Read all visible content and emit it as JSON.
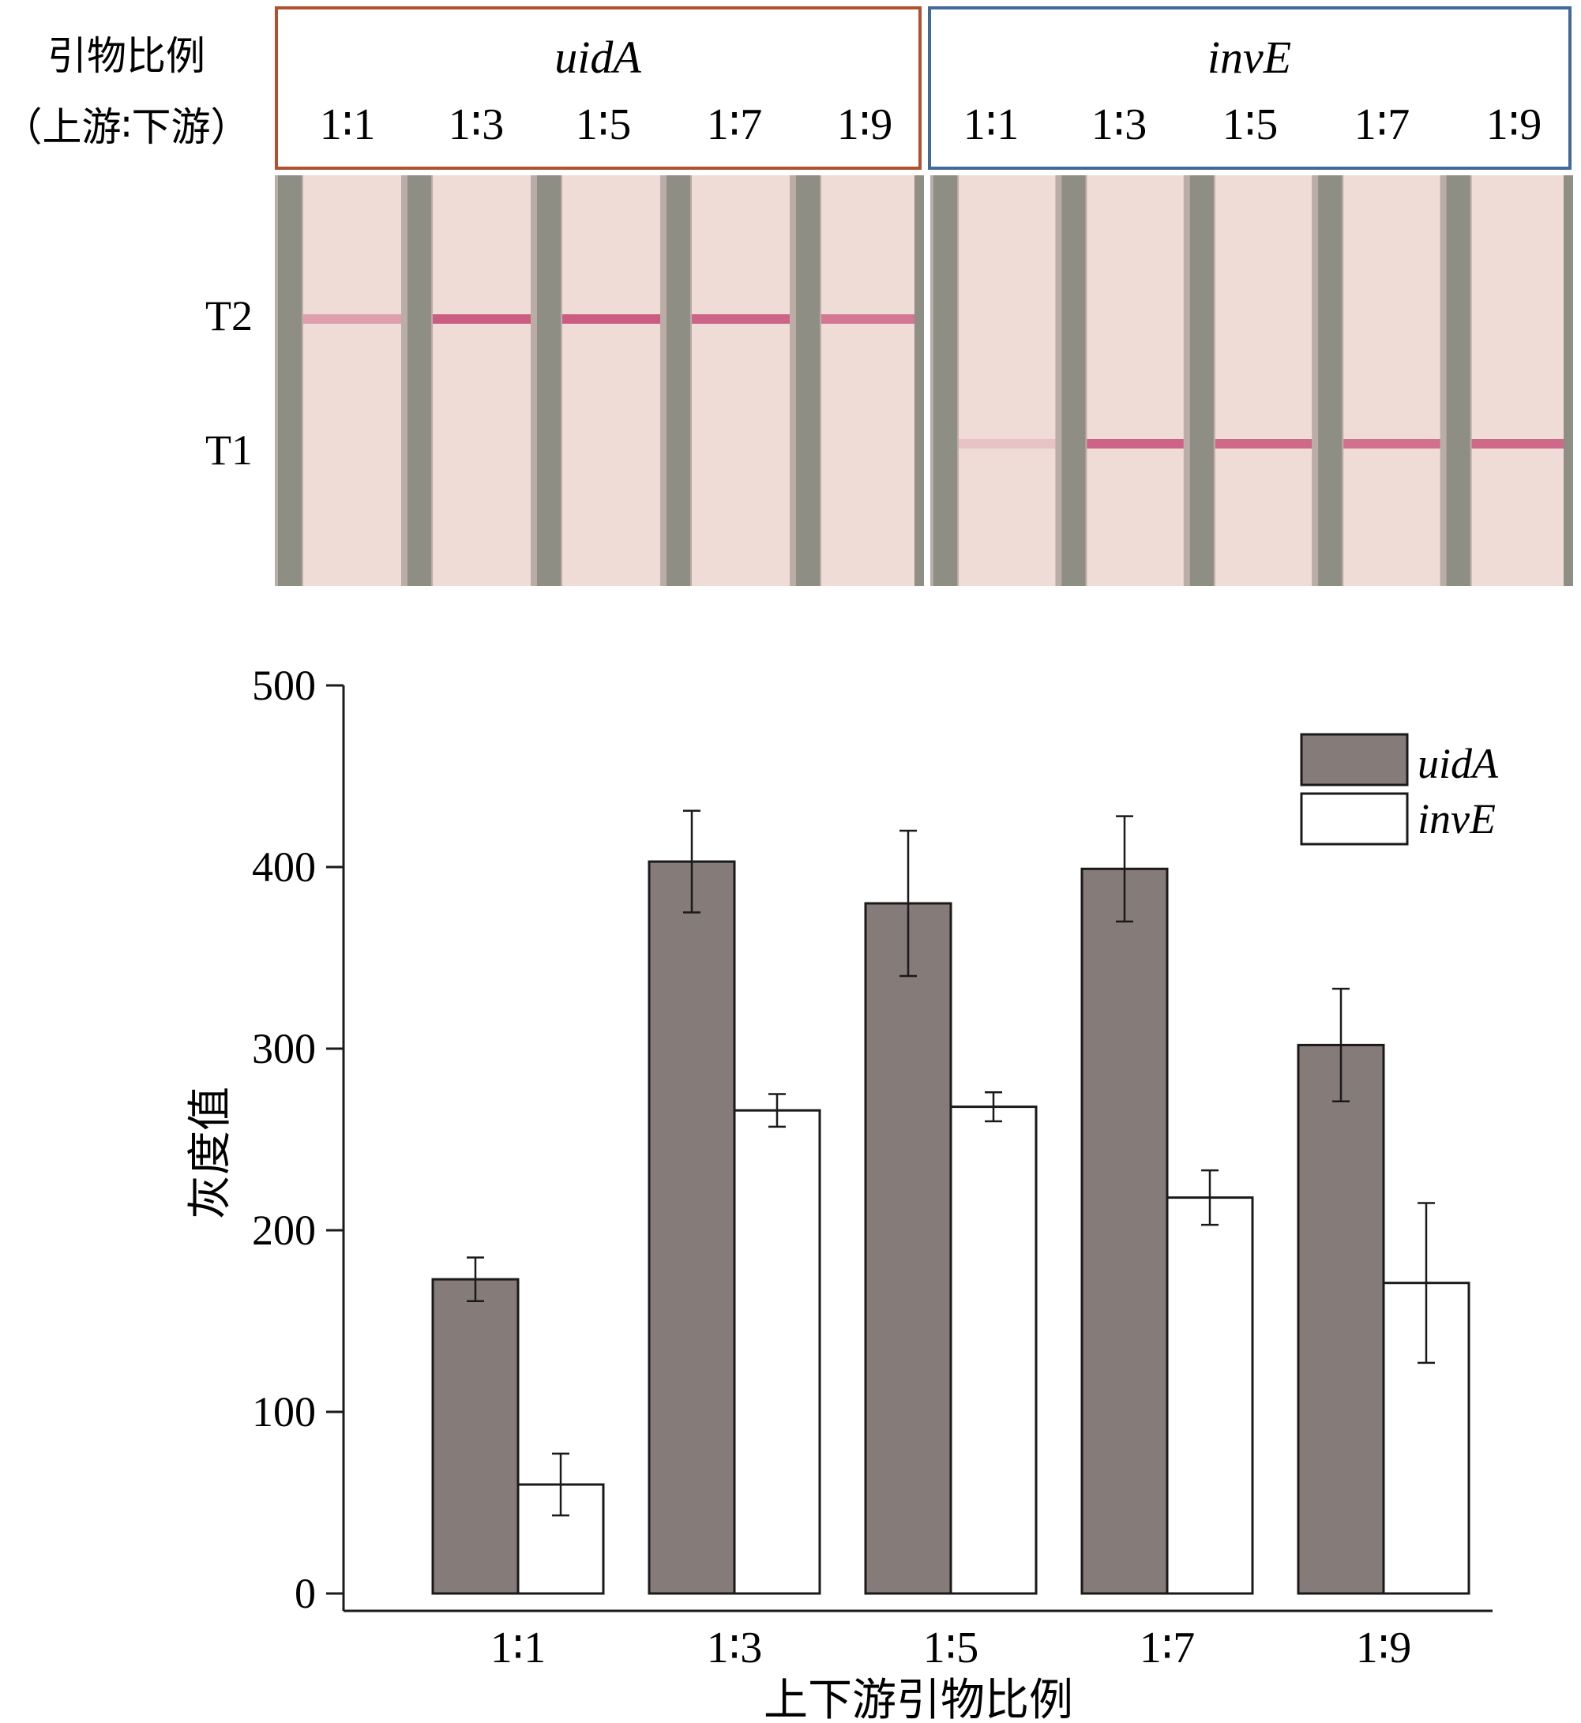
{
  "strip_panel": {
    "row_label_line1": "引物比例",
    "row_label_line2": "（上游∶下游）",
    "groups": [
      {
        "title": "uidA",
        "frame_color": "#b0512f",
        "band_row": "T2",
        "ratios": [
          "1∶1",
          "1∶3",
          "1∶5",
          "1∶7",
          "1∶9"
        ],
        "band_strength": [
          0.45,
          0.95,
          0.95,
          0.9,
          0.75
        ]
      },
      {
        "title": "invE",
        "frame_color": "#41699a",
        "band_row": "T1",
        "ratios": [
          "1∶1",
          "1∶3",
          "1∶5",
          "1∶7",
          "1∶9"
        ],
        "band_strength": [
          0.18,
          0.9,
          0.85,
          0.8,
          0.85
        ]
      }
    ],
    "line_labels": {
      "t2": "T2",
      "t1": "T1"
    },
    "strip_color": "#efdcd6",
    "band_color": "#c9557d",
    "divider_color": "#8e8e84"
  },
  "chart_data": {
    "type": "bar",
    "categories": [
      "1∶1",
      "1∶3",
      "1∶5",
      "1∶7",
      "1∶9"
    ],
    "series": [
      {
        "name": "uidA",
        "values": [
          173,
          403,
          380,
          399,
          302
        ],
        "errors": [
          12,
          28,
          40,
          29,
          31
        ],
        "color": "#857b78"
      },
      {
        "name": "invE",
        "values": [
          60,
          266,
          268,
          218,
          171
        ],
        "errors": [
          17,
          9,
          8,
          15,
          44
        ],
        "color": "#ffffff"
      }
    ],
    "xlabel": "上下游引物比例",
    "ylabel": "灰度值",
    "ylim": [
      0,
      500
    ],
    "yticks": [
      0,
      100,
      200,
      300,
      400,
      500
    ],
    "legend": "top-right",
    "grid": false
  }
}
